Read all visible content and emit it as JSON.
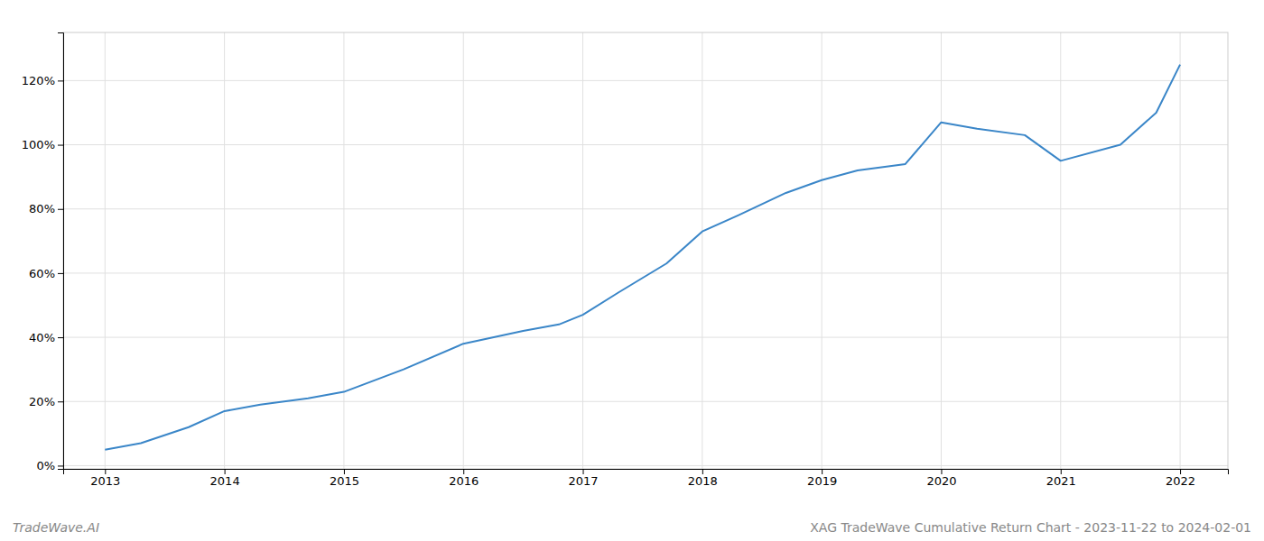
{
  "chart_data": {
    "type": "line",
    "title": "XAG TradeWave Cumulative Return Chart - 2023-11-22 to 2024-02-01",
    "annotations": [
      "TradeWave.AI"
    ],
    "x": [
      2013.0,
      2013.3,
      2013.7,
      2014.0,
      2014.3,
      2014.7,
      2015.0,
      2015.5,
      2016.0,
      2016.5,
      2016.8,
      2017.0,
      2017.3,
      2017.7,
      2018.0,
      2018.3,
      2018.7,
      2019.0,
      2019.3,
      2019.7,
      2020.0,
      2020.3,
      2020.7,
      2021.0,
      2021.5,
      2021.8,
      2022.0
    ],
    "values": [
      0.05,
      0.07,
      0.12,
      0.17,
      0.19,
      0.21,
      0.23,
      0.3,
      0.38,
      0.42,
      0.44,
      0.47,
      0.54,
      0.63,
      0.73,
      0.78,
      0.85,
      0.89,
      0.92,
      0.94,
      1.07,
      1.05,
      1.03,
      0.95,
      1.0,
      1.1,
      1.25
    ],
    "color": "#3a86c8",
    "xlim": [
      2012.65,
      2022.4
    ],
    "ylim": [
      -0.01,
      1.35
    ],
    "xticks": [
      2013,
      2014,
      2015,
      2016,
      2017,
      2018,
      2019,
      2020,
      2021,
      2022
    ],
    "yticks": [
      {
        "value": 0.0,
        "label": "0%"
      },
      {
        "value": 0.2,
        "label": "20%"
      },
      {
        "value": 0.4,
        "label": "40%"
      },
      {
        "value": 0.6,
        "label": "60%"
      },
      {
        "value": 0.8,
        "label": "80%"
      },
      {
        "value": 1.0,
        "label": "100%"
      },
      {
        "value": 1.2,
        "label": "120%"
      }
    ],
    "grid": true
  }
}
